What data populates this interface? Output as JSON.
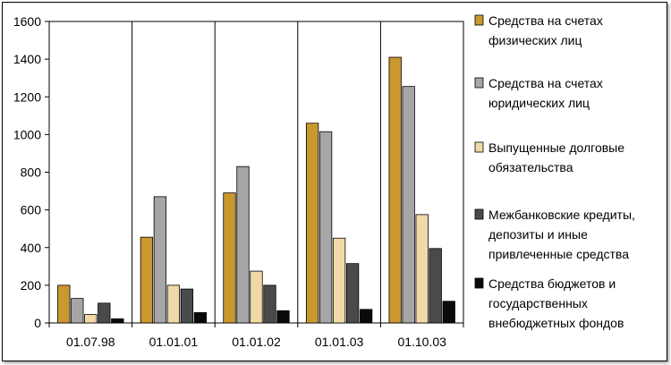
{
  "chart_data": {
    "type": "bar",
    "categories": [
      "01.07.98",
      "01.01.01",
      "01.01.02",
      "01.01.03",
      "01.10.03"
    ],
    "ylim": [
      0,
      1600
    ],
    "yticks": [
      0,
      200,
      400,
      600,
      800,
      1000,
      1200,
      1400,
      1600
    ],
    "grid": "vertical",
    "legend_position": "right",
    "series": [
      {
        "name": "Средства на счетах физических лиц",
        "legend_lines": [
          "Средства на счетах",
          "физических лиц"
        ],
        "color": "#C9982F",
        "values": [
          200,
          455,
          690,
          1060,
          1410
        ]
      },
      {
        "name": "Средства на счетах юридических лиц",
        "legend_lines": [
          "Средства на счетах",
          "юридических лиц"
        ],
        "color": "#A6A6A6",
        "values": [
          130,
          670,
          830,
          1015,
          1255
        ]
      },
      {
        "name": "Выпущенные долговые обязательства",
        "legend_lines": [
          "Выпущенные долговые",
          "обязательства"
        ],
        "color": "#F0D9A8",
        "values": [
          45,
          200,
          275,
          450,
          575
        ]
      },
      {
        "name": "Межбанковские кредиты, депозиты и иные привлеченные средства",
        "legend_lines": [
          "Межбанковские кредиты,",
          "депозиты и иные",
          "привлеченные средства"
        ],
        "color": "#4A4A4A",
        "values": [
          105,
          180,
          200,
          315,
          395
        ]
      },
      {
        "name": "Средства бюджетов и государственных внебюджетных фондов",
        "legend_lines": [
          "Средства бюджетов и",
          "государственных",
          "внебюджетных фондов"
        ],
        "color": "#0A0A0A",
        "values": [
          22,
          55,
          65,
          72,
          115
        ]
      }
    ]
  }
}
